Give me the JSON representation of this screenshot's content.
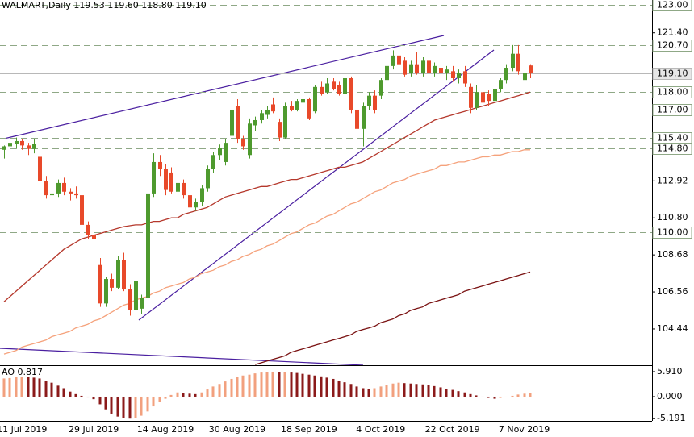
{
  "chart_data": [
    {
      "type": "candlestick",
      "title": "WALMART,Daily  119.53 119.60 118.80 119.10",
      "categories": [
        null,
        null,
        null,
        "11 Jul 2019",
        null,
        null,
        null,
        null,
        null,
        null,
        null,
        null,
        null,
        null,
        null,
        "29 Jul 2019",
        null,
        null,
        null,
        null,
        null,
        null,
        null,
        null,
        null,
        null,
        null,
        "14 Aug 2019",
        null,
        null,
        null,
        null,
        null,
        null,
        null,
        null,
        null,
        null,
        null,
        "30 Aug 2019",
        null,
        null,
        null,
        null,
        null,
        null,
        null,
        null,
        null,
        null,
        null,
        "18 Sep 2019",
        null,
        null,
        null,
        null,
        null,
        null,
        null,
        null,
        null,
        null,
        null,
        "4 Oct 2019",
        null,
        null,
        null,
        null,
        null,
        null,
        null,
        null,
        null,
        null,
        null,
        "22 Oct 2019",
        null,
        null,
        null,
        null,
        null,
        null,
        null,
        null,
        null,
        null,
        null,
        "7 Nov 2019",
        null
      ],
      "series": [
        {
          "up_color": "#4e9a2e",
          "down_color": "#e8492a",
          "values": [
            [
              114.7,
              114.95,
              114.2,
              114.9
            ],
            [
              114.9,
              115.2,
              114.6,
              115.1
            ],
            [
              115.05,
              115.4,
              114.8,
              115.2
            ],
            [
              115.2,
              115.3,
              114.7,
              114.95
            ],
            [
              114.95,
              115.1,
              114.4,
              114.75
            ],
            [
              114.75,
              115.3,
              114.5,
              115.05
            ],
            [
              114.3,
              115.0,
              112.7,
              112.9
            ],
            [
              112.9,
              113.2,
              111.9,
              112.1
            ],
            [
              112.1,
              112.6,
              111.6,
              112.2
            ],
            [
              112.2,
              113.0,
              112.0,
              112.8
            ],
            [
              112.8,
              113.1,
              112.1,
              112.3
            ],
            [
              112.3,
              112.5,
              111.8,
              112.2
            ],
            [
              112.2,
              112.6,
              111.9,
              112.1
            ],
            [
              112.1,
              112.2,
              110.2,
              110.4
            ],
            [
              110.4,
              110.6,
              109.6,
              109.8
            ],
            [
              109.8,
              110.1,
              108.2,
              109.6
            ],
            [
              108.1,
              108.5,
              105.7,
              105.9
            ],
            [
              105.9,
              107.4,
              105.7,
              107.3
            ],
            [
              107.3,
              107.6,
              106.6,
              106.8
            ],
            [
              106.8,
              108.6,
              106.7,
              108.4
            ],
            [
              108.4,
              108.8,
              106.6,
              106.7
            ],
            [
              106.7,
              107.0,
              105.2,
              105.5
            ],
            [
              105.5,
              107.4,
              105.1,
              107.2
            ],
            [
              105.6,
              106.4,
              105.3,
              106.2
            ],
            [
              106.2,
              112.4,
              106.1,
              112.2
            ],
            [
              112.2,
              114.5,
              112.0,
              114.0
            ],
            [
              114.0,
              114.4,
              113.2,
              113.6
            ],
            [
              113.6,
              113.9,
              112.1,
              112.4
            ],
            [
              113.4,
              113.7,
              112.2,
              112.3
            ],
            [
              112.3,
              113.1,
              112.1,
              112.8
            ],
            [
              112.8,
              113.0,
              111.9,
              112.1
            ],
            [
              112.1,
              112.2,
              111.1,
              111.4
            ],
            [
              111.4,
              111.9,
              111.2,
              111.7
            ],
            [
              111.7,
              112.7,
              111.5,
              112.5
            ],
            [
              112.5,
              113.8,
              112.3,
              113.6
            ],
            [
              113.6,
              114.6,
              113.4,
              114.4
            ],
            [
              114.4,
              115.0,
              114.1,
              114.8
            ],
            [
              114.0,
              115.3,
              113.8,
              115.1
            ],
            [
              115.5,
              117.4,
              115.2,
              117.0
            ],
            [
              117.2,
              117.6,
              115.1,
              115.3
            ],
            [
              115.3,
              115.5,
              114.7,
              114.9
            ],
            [
              114.4,
              116.5,
              114.2,
              116.2
            ],
            [
              116.1,
              116.6,
              115.8,
              116.4
            ],
            [
              116.4,
              117.0,
              116.2,
              116.8
            ],
            [
              116.7,
              117.2,
              116.5,
              117.0
            ],
            [
              117.3,
              117.7,
              116.8,
              116.9
            ],
            [
              116.3,
              116.5,
              115.2,
              115.4
            ],
            [
              115.4,
              117.4,
              115.3,
              117.2
            ],
            [
              117.2,
              117.5,
              116.9,
              117.0
            ],
            [
              117.0,
              117.6,
              116.9,
              117.5
            ],
            [
              117.4,
              117.7,
              117.2,
              117.6
            ],
            [
              117.6,
              117.7,
              116.4,
              116.5
            ],
            [
              116.9,
              118.4,
              116.8,
              118.3
            ],
            [
              118.3,
              118.6,
              117.8,
              117.9
            ],
            [
              118.0,
              118.8,
              117.9,
              118.5
            ],
            [
              118.6,
              118.8,
              118.1,
              118.2
            ],
            [
              118.4,
              118.6,
              117.8,
              117.9
            ],
            [
              117.9,
              118.9,
              117.7,
              118.8
            ],
            [
              118.8,
              118.9,
              116.8,
              117.0
            ],
            [
              117.0,
              117.2,
              115.1,
              115.9
            ],
            [
              115.9,
              117.4,
              114.9,
              117.2
            ],
            [
              117.2,
              118.0,
              117.0,
              117.8
            ],
            [
              117.8,
              118.1,
              116.8,
              117.0
            ],
            [
              117.8,
              118.8,
              117.6,
              118.7
            ],
            [
              118.7,
              119.6,
              118.4,
              119.5
            ],
            [
              119.5,
              120.4,
              119.3,
              120.1
            ],
            [
              120.1,
              120.5,
              119.5,
              119.6
            ],
            [
              119.8,
              120.0,
              118.9,
              119.0
            ],
            [
              119.1,
              119.8,
              118.9,
              119.6
            ],
            [
              119.6,
              120.3,
              119.0,
              119.1
            ],
            [
              119.1,
              120.0,
              118.9,
              119.8
            ],
            [
              119.8,
              120.4,
              119.0,
              119.1
            ],
            [
              119.1,
              119.7,
              118.9,
              119.5
            ],
            [
              119.4,
              119.6,
              118.9,
              119.1
            ],
            [
              119.1,
              119.5,
              118.7,
              119.3
            ],
            [
              119.2,
              119.5,
              118.6,
              118.8
            ],
            [
              118.8,
              119.3,
              118.5,
              119.1
            ],
            [
              119.2,
              119.5,
              118.3,
              118.5
            ],
            [
              118.3,
              118.5,
              116.8,
              117.1
            ],
            [
              117.1,
              118.4,
              117.0,
              118.0
            ],
            [
              118.0,
              118.2,
              117.2,
              117.4
            ],
            [
              117.9,
              118.1,
              117.2,
              117.5
            ],
            [
              117.5,
              118.4,
              117.3,
              118.2
            ],
            [
              118.2,
              118.8,
              118.0,
              118.7
            ],
            [
              118.7,
              119.6,
              118.5,
              119.4
            ],
            [
              119.4,
              120.7,
              119.2,
              120.2
            ],
            [
              120.2,
              120.7,
              119.0,
              119.2
            ],
            [
              118.7,
              119.4,
              118.5,
              119.1
            ],
            [
              119.53,
              119.6,
              118.8,
              119.1
            ]
          ]
        }
      ],
      "lines": [
        {
          "color": "#b5382c",
          "values": [
            106.0,
            106.3,
            106.6,
            106.9,
            107.2,
            107.5,
            107.8,
            108.1,
            108.4,
            108.7,
            109.0,
            109.2,
            109.4,
            109.6,
            109.7,
            109.8,
            109.9,
            110.0,
            110.1,
            110.2,
            110.3,
            110.35,
            110.4,
            110.4,
            110.5,
            110.6,
            110.6,
            110.7,
            110.8,
            110.8,
            111.0,
            111.1,
            111.2,
            111.3,
            111.4,
            111.6,
            111.8,
            112.0,
            112.1,
            112.2,
            112.3,
            112.4,
            112.5,
            112.6,
            112.6,
            112.7,
            112.8,
            112.9,
            113.0,
            113.0,
            113.1,
            113.2,
            113.3,
            113.4,
            113.5,
            113.6,
            113.7,
            113.7,
            113.8,
            113.9,
            114.0,
            114.2,
            114.4,
            114.6,
            114.8,
            115.0,
            115.2,
            115.4,
            115.6,
            115.8,
            116.0,
            116.2,
            116.4,
            116.5,
            116.6,
            116.7,
            116.8,
            116.9,
            117.0,
            117.1,
            117.2,
            117.3,
            117.4,
            117.5,
            117.6,
            117.7,
            117.8,
            117.9,
            118.0
          ]
        },
        {
          "color": "#f5a27c",
          "values": [
            103.0,
            103.1,
            103.2,
            103.4,
            103.5,
            103.6,
            103.7,
            103.8,
            104.0,
            104.1,
            104.2,
            104.3,
            104.5,
            104.6,
            104.7,
            104.9,
            105.0,
            105.2,
            105.4,
            105.6,
            105.8,
            105.9,
            106.1,
            106.2,
            106.3,
            106.5,
            106.6,
            106.8,
            106.9,
            107.0,
            107.1,
            107.3,
            107.4,
            107.6,
            107.7,
            107.8,
            108.0,
            108.1,
            108.3,
            108.4,
            108.6,
            108.7,
            108.9,
            109.0,
            109.2,
            109.3,
            109.5,
            109.7,
            109.9,
            110.0,
            110.2,
            110.4,
            110.5,
            110.7,
            110.9,
            111.0,
            111.2,
            111.4,
            111.6,
            111.7,
            111.9,
            112.1,
            112.3,
            112.4,
            112.6,
            112.8,
            112.9,
            113.0,
            113.2,
            113.3,
            113.4,
            113.5,
            113.6,
            113.8,
            113.8,
            113.9,
            114.0,
            114.0,
            114.1,
            114.2,
            114.3,
            114.3,
            114.4,
            114.4,
            114.5,
            114.6,
            114.6,
            114.7,
            114.7
          ]
        },
        {
          "color": "#7a1212",
          "values": [
            null,
            null,
            null,
            null,
            null,
            null,
            null,
            null,
            null,
            null,
            null,
            null,
            null,
            null,
            null,
            null,
            null,
            null,
            null,
            null,
            null,
            null,
            null,
            null,
            null,
            null,
            null,
            null,
            null,
            null,
            null,
            null,
            null,
            null,
            null,
            null,
            null,
            null,
            null,
            null,
            null,
            null,
            102.4,
            102.5,
            102.6,
            102.7,
            102.8,
            102.9,
            103.1,
            103.2,
            103.3,
            103.4,
            103.5,
            103.6,
            103.7,
            103.8,
            103.9,
            104.0,
            104.1,
            104.3,
            104.4,
            104.5,
            104.6,
            104.8,
            104.9,
            105.0,
            105.2,
            105.3,
            105.5,
            105.6,
            105.7,
            105.9,
            106.0,
            106.1,
            106.2,
            106.3,
            106.4,
            106.6,
            106.7,
            106.8,
            106.9,
            107.0,
            107.1,
            107.2,
            107.3,
            107.4,
            107.5,
            107.6,
            107.7
          ]
        }
      ],
      "levels": [
        {
          "value": 123,
          "label": "123.00"
        },
        {
          "value": 120.7,
          "label": "120.70"
        },
        {
          "value": 118,
          "label": "118.00"
        },
        {
          "value": 117,
          "label": "117.00"
        },
        {
          "value": 115.4,
          "label": "115.40"
        },
        {
          "value": 114.8,
          "label": "114.80"
        },
        {
          "value": 110,
          "label": "110.00"
        }
      ],
      "level_color": "#8fa886",
      "last_price": {
        "value": 119.1,
        "label": "119.10"
      },
      "ylim": [
        102.36,
        123.28
      ],
      "yticks": [
        {
          "value": 121.4,
          "label": "121.40"
        },
        112.92,
        {
          "value": 110.8,
          "label": "110.80"
        },
        108.68,
        106.56,
        104.44
      ]
    },
    {
      "type": "histogram",
      "title": "AO 0.817",
      "up_color": "#f2a07e",
      "down_color": "#8b1a1a",
      "values": [
        4.3,
        4.4,
        4.6,
        4.7,
        4.6,
        4.5,
        4.3,
        3.8,
        3.3,
        2.6,
        2.0,
        1.2,
        0.6,
        0.2,
        -0.2,
        -0.6,
        -1.8,
        -3.0,
        -4.0,
        -4.7,
        -5.0,
        -5.191,
        -5.0,
        -4.5,
        -3.5,
        -2.3,
        -1.3,
        -0.5,
        0.4,
        1.0,
        0.9,
        0.7,
        0.6,
        1.0,
        1.7,
        2.4,
        3.0,
        3.6,
        4.2,
        4.7,
        5.0,
        5.2,
        5.5,
        5.7,
        5.8,
        5.91,
        5.8,
        5.8,
        5.7,
        5.6,
        5.4,
        5.2,
        5.0,
        4.8,
        4.5,
        4.2,
        3.8,
        3.4,
        3.0,
        2.4,
        2.0,
        1.9,
        2.0,
        2.4,
        2.8,
        3.1,
        3.3,
        3.2,
        3.1,
        3.0,
        2.9,
        2.7,
        2.5,
        2.2,
        1.9,
        1.6,
        1.3,
        1.0,
        0.6,
        0.3,
        0.0,
        -0.3,
        -0.5,
        -0.3,
        -0.1,
        0.2,
        0.5,
        0.7,
        0.817
      ],
      "ylim": [
        -5.72,
        7.43
      ],
      "yticks": [
        {
          "value": 5.91,
          "label": "5.910"
        },
        {
          "value": 0,
          "label": "0.000"
        },
        {
          "value": -5.191,
          "label": "-5.191"
        }
      ]
    }
  ]
}
